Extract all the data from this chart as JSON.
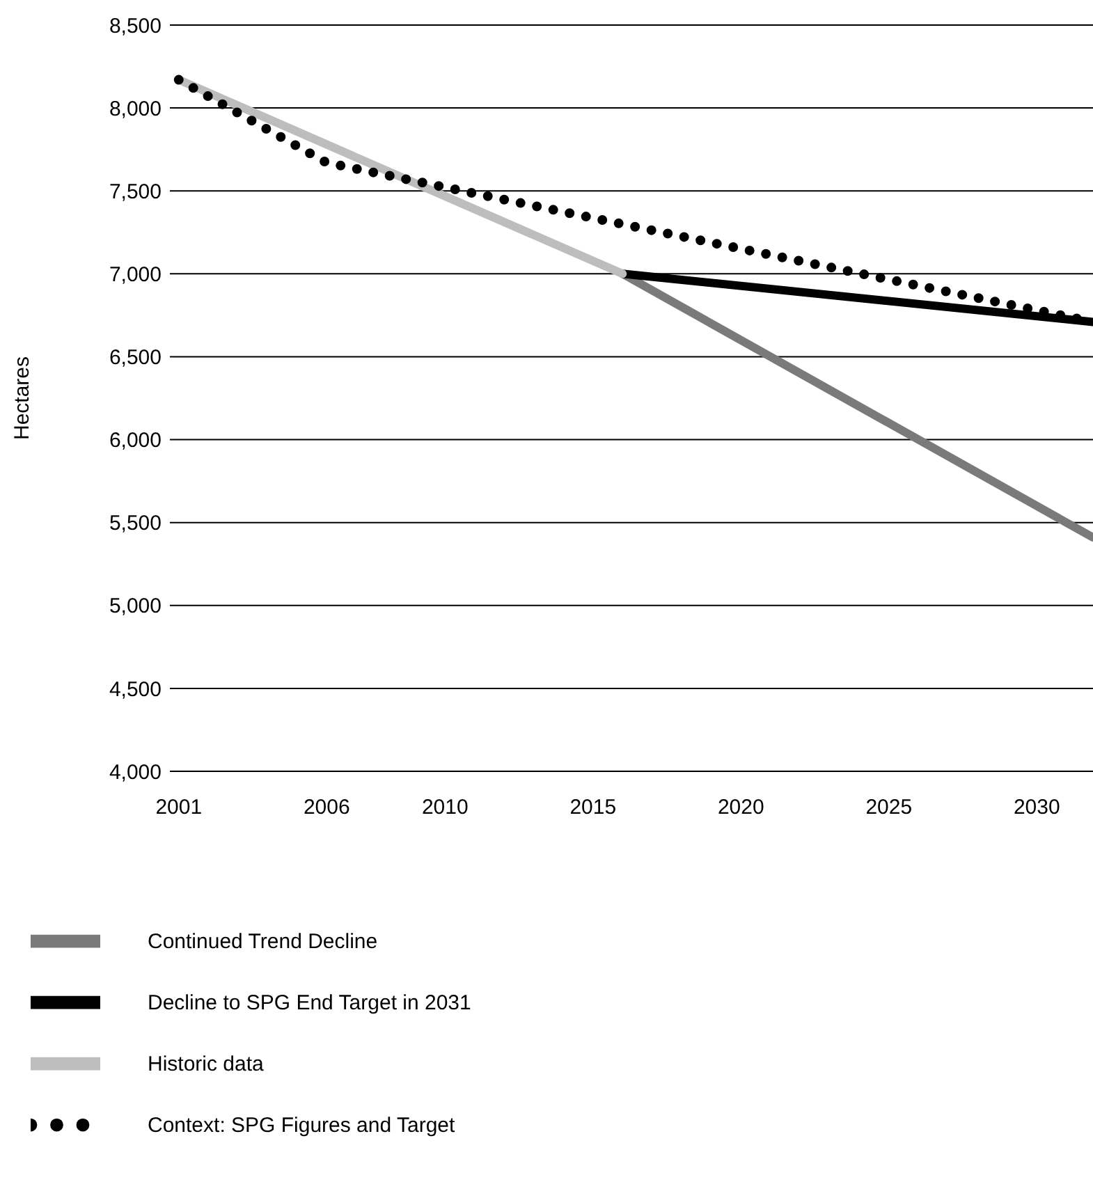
{
  "chart_data": {
    "type": "line",
    "ylabel": "Hectares",
    "xlim": [
      2000.7,
      2031.9
    ],
    "xticks": [
      2001,
      2006,
      2010,
      2015,
      2020,
      2025,
      2030
    ],
    "ylim": [
      4000,
      8500
    ],
    "yticks": [
      {
        "value": 4000,
        "label": "4,000"
      },
      {
        "value": 4500,
        "label": "4,500"
      },
      {
        "value": 5000,
        "label": "5,000"
      },
      {
        "value": 5500,
        "label": "5,500"
      },
      {
        "value": 6000,
        "label": "6,000"
      },
      {
        "value": 6500,
        "label": "6,500"
      },
      {
        "value": 7000,
        "label": "7,000"
      },
      {
        "value": 7500,
        "label": "7,500"
      },
      {
        "value": 8000,
        "label": "8,000"
      },
      {
        "value": 8500,
        "label": "8,500"
      }
    ],
    "grid": "y",
    "legend": "bottom",
    "marker": "none",
    "series": [
      {
        "name": "Continued Trend Decline",
        "color": "#7a7a7a",
        "line_style": "solid",
        "x": [
          2016,
          2031.9
        ],
        "values": [
          7000,
          5410
        ]
      },
      {
        "name": "Decline to SPG End Target in 2031",
        "color": "#000000",
        "line_style": "solid",
        "x": [
          2016,
          2031.9
        ],
        "values": [
          7000,
          6710
        ]
      },
      {
        "name": "Historic data",
        "color": "#bdbdbd",
        "line_style": "solid",
        "x": [
          2001,
          2016
        ],
        "values": [
          8170,
          7000
        ]
      },
      {
        "name": "Context: SPG Figures and Target",
        "color": "#000000",
        "line_style": "dotted",
        "x": [
          2001,
          2006,
          2031.9
        ],
        "values": [
          8170,
          7670,
          6710
        ]
      }
    ]
  }
}
